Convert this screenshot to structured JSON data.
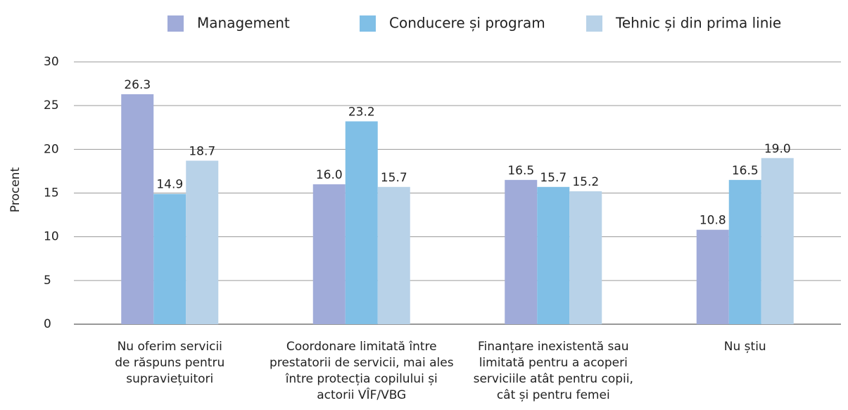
{
  "chart_data": {
    "type": "bar",
    "y_label": "Procent",
    "categories": [
      "Nu oferim servicii de răspuns pentru supraviețuitori",
      "Coordonare limitată între prestatorii de servicii, mai ales între protecția copilului și actorii VÎF/VBG",
      "Finanțare inexistentă sau limitată pentru a acoperi serviciile atât pentru copii, cât și pentru femei",
      "Nu știu"
    ],
    "series": [
      {
        "name": "Management",
        "color": "#a0abd9",
        "values": [
          26.3,
          16.0,
          16.5,
          10.8
        ],
        "value_labels": [
          "26.3",
          "16.0",
          "16.5",
          "10.8"
        ]
      },
      {
        "name": "Conducere și program",
        "color": "#80bfe6",
        "values": [
          14.9,
          23.2,
          15.7,
          16.5
        ],
        "value_labels": [
          "14.9",
          "23.2",
          "15.7",
          "16.5"
        ]
      },
      {
        "name": "Tehnic și din prima linie",
        "color": "#b8d2e8",
        "values": [
          18.7,
          15.7,
          15.2,
          19.0
        ],
        "value_labels": [
          "18.7",
          "15.7",
          "15.2",
          "19.0"
        ]
      }
    ],
    "ylim": [
      0,
      30
    ],
    "yticks": [
      0,
      5,
      10,
      15,
      20,
      25,
      30
    ],
    "grid": true,
    "legend": "top"
  }
}
